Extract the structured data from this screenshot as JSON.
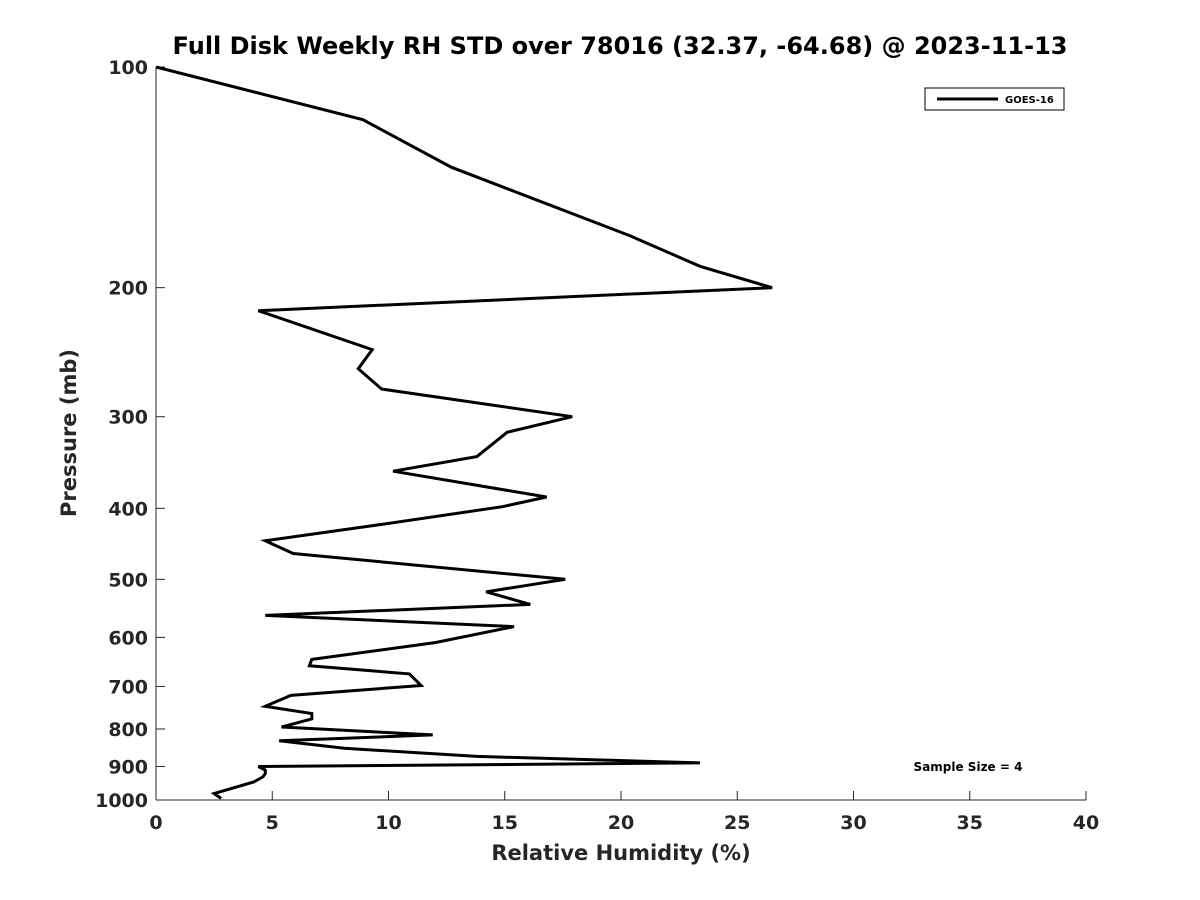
{
  "chart_data": {
    "type": "line",
    "title": "Full Disk Weekly RH STD over 78016 (32.37, -64.68) @ 2023-11-13",
    "xlabel": "Relative Humidity (%)",
    "ylabel": "Pressure (mb)",
    "xlim": [
      0,
      40
    ],
    "ylim": [
      100,
      1000
    ],
    "yscale": "log",
    "y_reversed": true,
    "x_ticks": [
      "0",
      "5",
      "10",
      "15",
      "20",
      "25",
      "30",
      "35",
      "40"
    ],
    "y_ticks": [
      "100",
      "200",
      "300",
      "400",
      "500",
      "600",
      "700",
      "800",
      "900",
      "1000"
    ],
    "grid": false,
    "legend_position": "top-right",
    "annotation": "Sample Size = 4",
    "series": [
      {
        "name": "GOES-16",
        "color": "#000000",
        "x": [
          0,
          8.9,
          12.7,
          20.4,
          23.4,
          26.5,
          4.4,
          9.3,
          8.7,
          9.7,
          17.9,
          15.1,
          13.8,
          10.2,
          16.8,
          14.9,
          9.4,
          4.7,
          5.9,
          17.6,
          14.2,
          16.1,
          4.7,
          15.4,
          12.0,
          6.7,
          6.6,
          10.9,
          11.4,
          5.8,
          4.7,
          6.7,
          6.7,
          5.4,
          11.9,
          5.3,
          8.1,
          13.8,
          23.4,
          4.4,
          4.7,
          4.7,
          4.6,
          4.2,
          2.5,
          2.8
        ],
        "y": [
          100,
          118,
          137,
          170,
          187,
          200,
          215,
          243,
          258,
          275,
          300,
          315,
          340,
          356,
          386,
          398,
          422,
          443,
          461,
          500,
          520,
          541,
          560,
          580,
          610,
          643,
          656,
          673,
          698,
          720,
          745,
          762,
          775,
          795,
          815,
          830,
          850,
          872,
          890,
          900,
          910,
          920,
          930,
          945,
          980,
          995
        ]
      }
    ]
  }
}
